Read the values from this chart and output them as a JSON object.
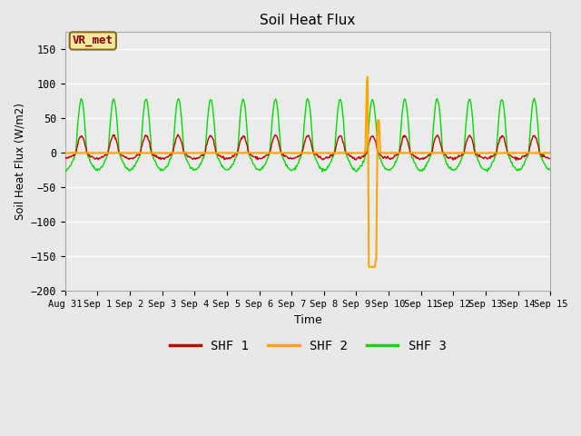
{
  "title": "Soil Heat Flux",
  "ylabel": "Soil Heat Flux (W/m2)",
  "xlabel": "Time",
  "ylim": [
    -200,
    175
  ],
  "yticks": [
    -200,
    -150,
    -100,
    -50,
    0,
    50,
    100,
    150
  ],
  "bg_color": "#e8e8e8",
  "plot_bg": "#ebebeb",
  "colors": {
    "SHF 1": "#cc0000",
    "SHF 2": "#ffa500",
    "SHF 3": "#00dd00"
  },
  "legend_label": "VR_met",
  "start_day": 0,
  "end_day": 15,
  "num_days": 15
}
